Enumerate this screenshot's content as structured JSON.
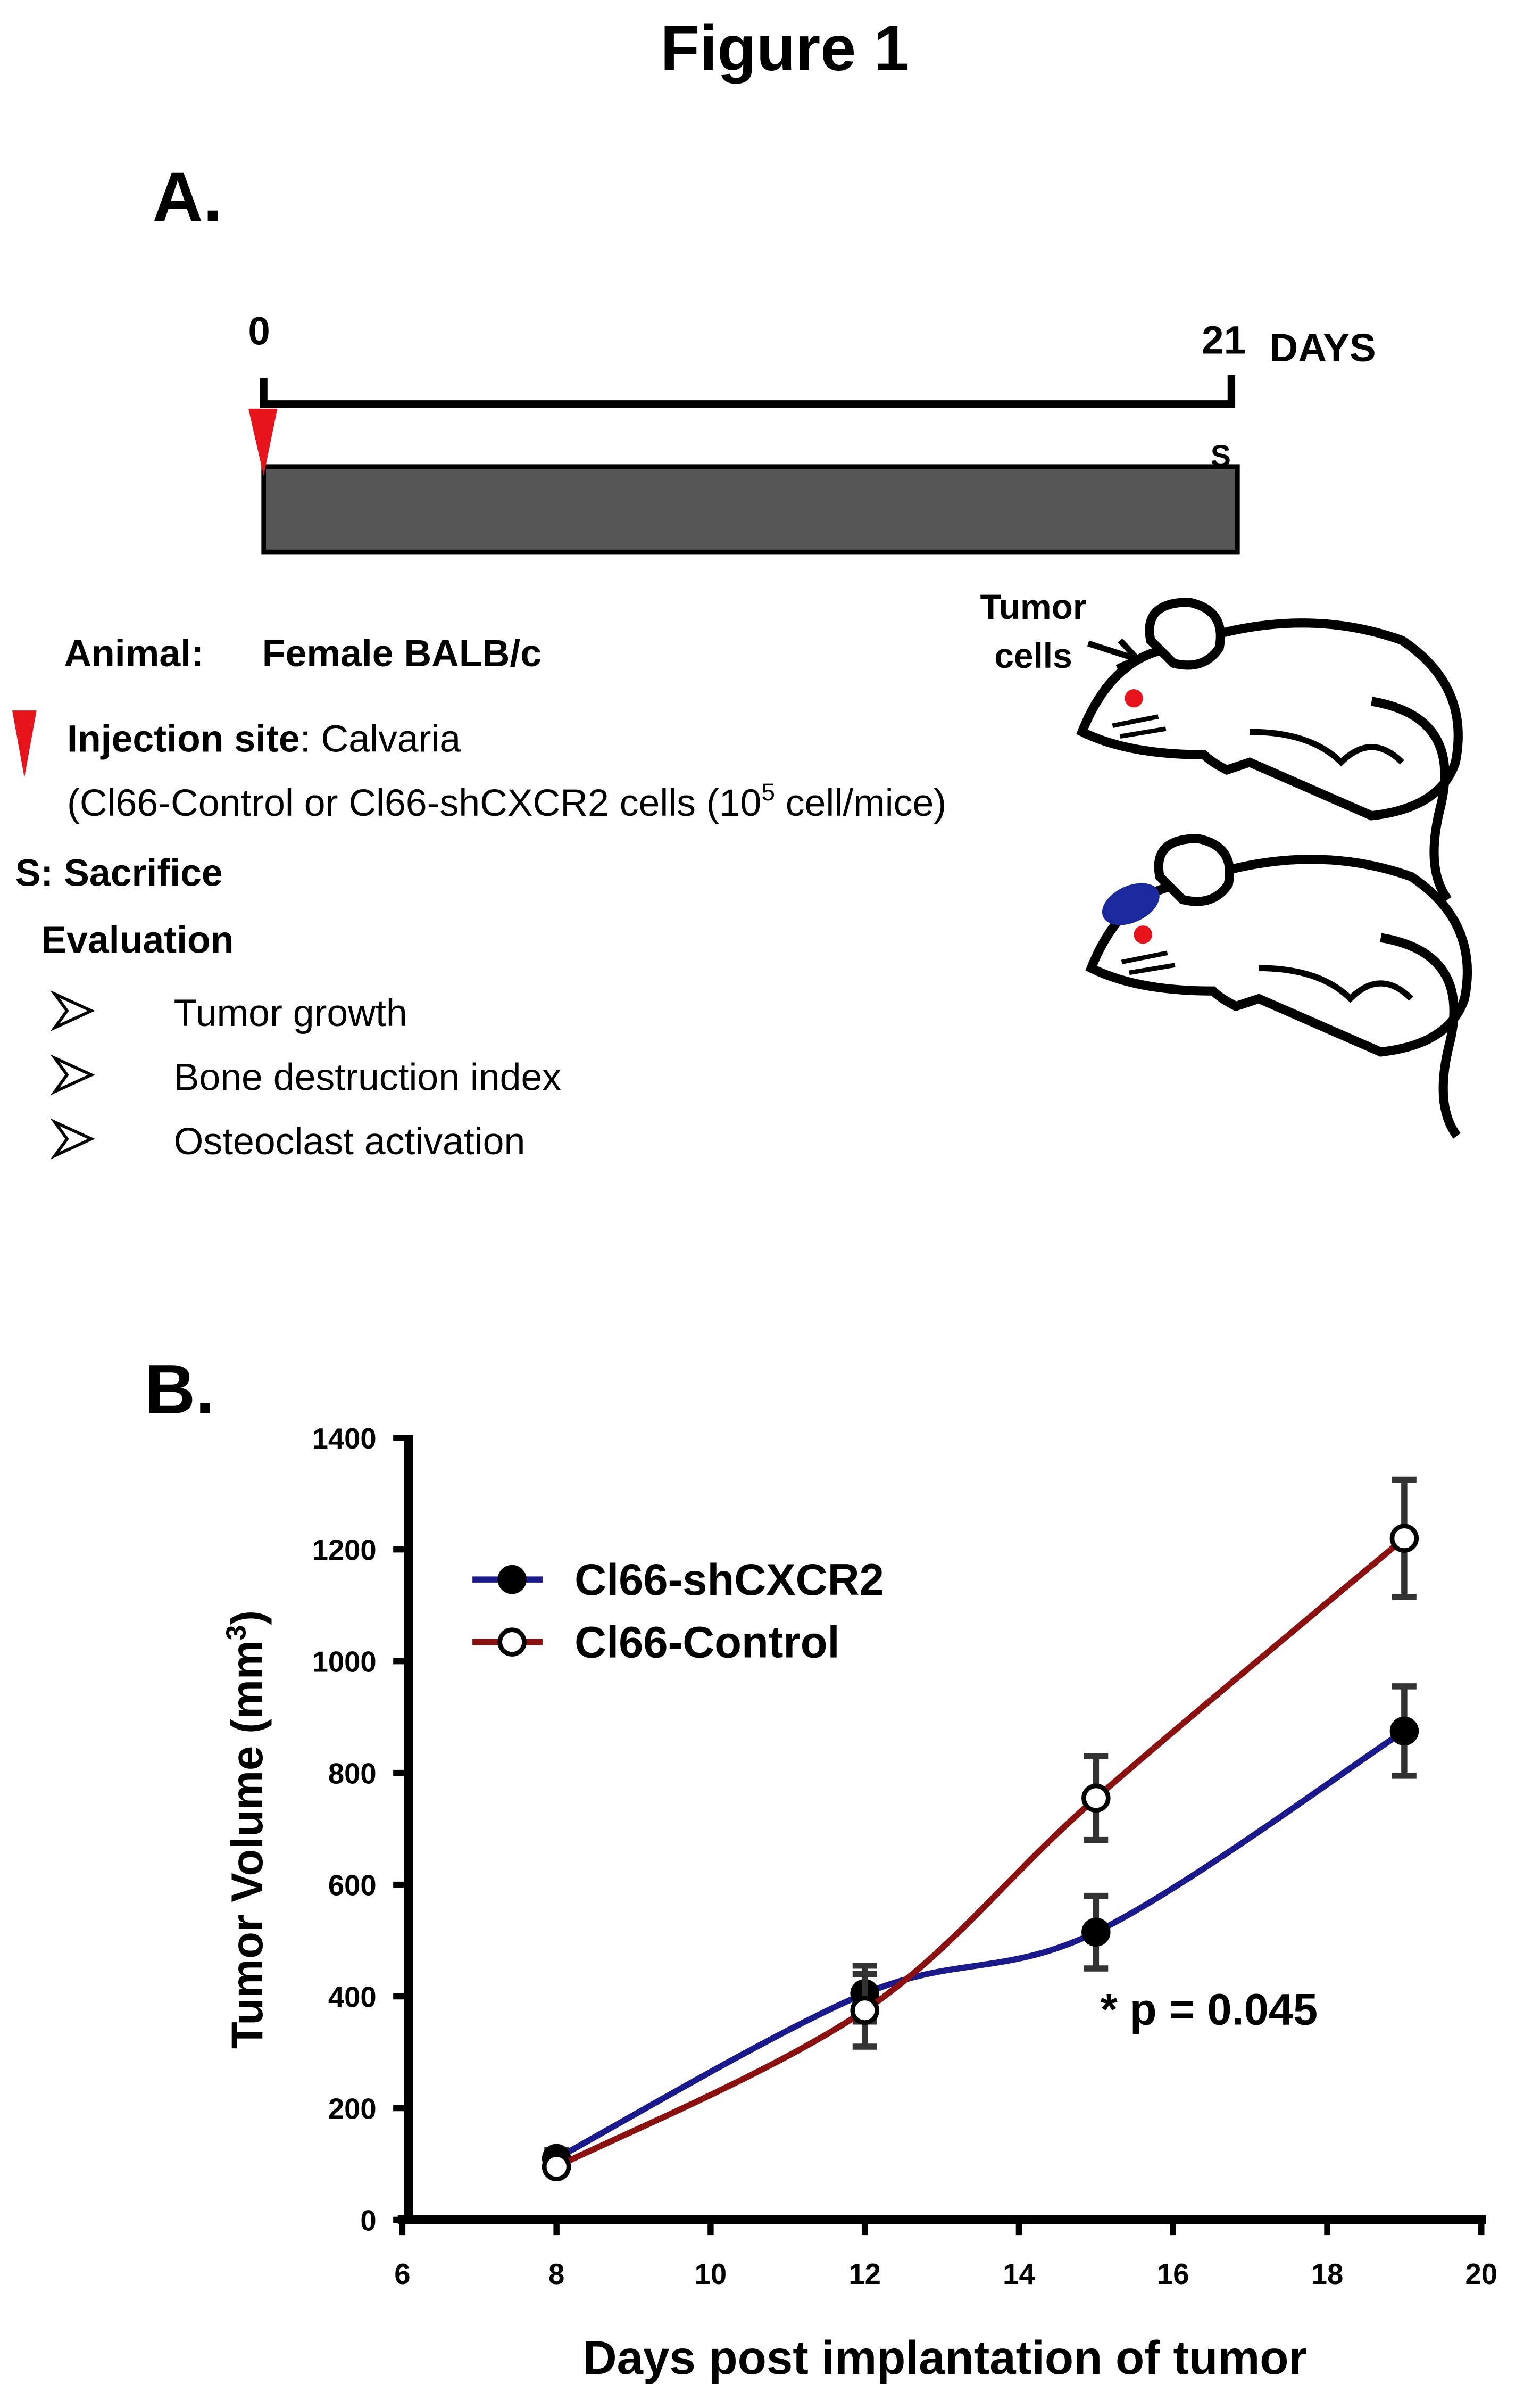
{
  "title": "Figure 1",
  "panel_a": {
    "label": "A.",
    "timeline": {
      "start": "0",
      "end": "21",
      "unit": "DAYS",
      "sacrifice": "S"
    },
    "animal_label": "Animal:",
    "animal": "Female BALB/c",
    "injection_label": "Injection site",
    "injection": ": Calvaria",
    "cells_pre": "(Cl66-Control or Cl66-shCXCR2 cells (10",
    "cells_sup": "5",
    "cells_post": " cell/mice)",
    "sacrifice": "S: Sacrifice",
    "evaluation": "Evaluation",
    "evaluation_items": [
      "Tumor  growth",
      "Bone destruction index",
      "Osteoclast activation"
    ],
    "tumor_label": [
      "Tumor",
      "cells"
    ]
  },
  "chart_data": {
    "type": "line",
    "panel_label": "B.",
    "x_label": "Days post implantation of tumor",
    "y_label": {
      "pre": "Tumor Volume (mm",
      "sup": "3",
      "post": ")"
    },
    "x": [
      8,
      12,
      15,
      19
    ],
    "series": [
      {
        "name": "Cl66-shCXCR2",
        "color": "#1a1a8c",
        "marker": "filled",
        "values": [
          110,
          405,
          515,
          875
        ],
        "errors": [
          15,
          50,
          65,
          80
        ]
      },
      {
        "name": "Cl66-Control",
        "color": "#8b1010",
        "marker": "open",
        "values": [
          95,
          375,
          755,
          1220
        ],
        "errors": [
          10,
          65,
          75,
          105
        ]
      }
    ],
    "xlim": [
      6,
      20
    ],
    "xticks": [
      6,
      8,
      10,
      12,
      14,
      16,
      18,
      20
    ],
    "ylim": [
      0,
      1400
    ],
    "yticks": [
      0,
      200,
      400,
      600,
      800,
      1000,
      1200,
      1400
    ],
    "annotation": "* p = 0.045"
  }
}
